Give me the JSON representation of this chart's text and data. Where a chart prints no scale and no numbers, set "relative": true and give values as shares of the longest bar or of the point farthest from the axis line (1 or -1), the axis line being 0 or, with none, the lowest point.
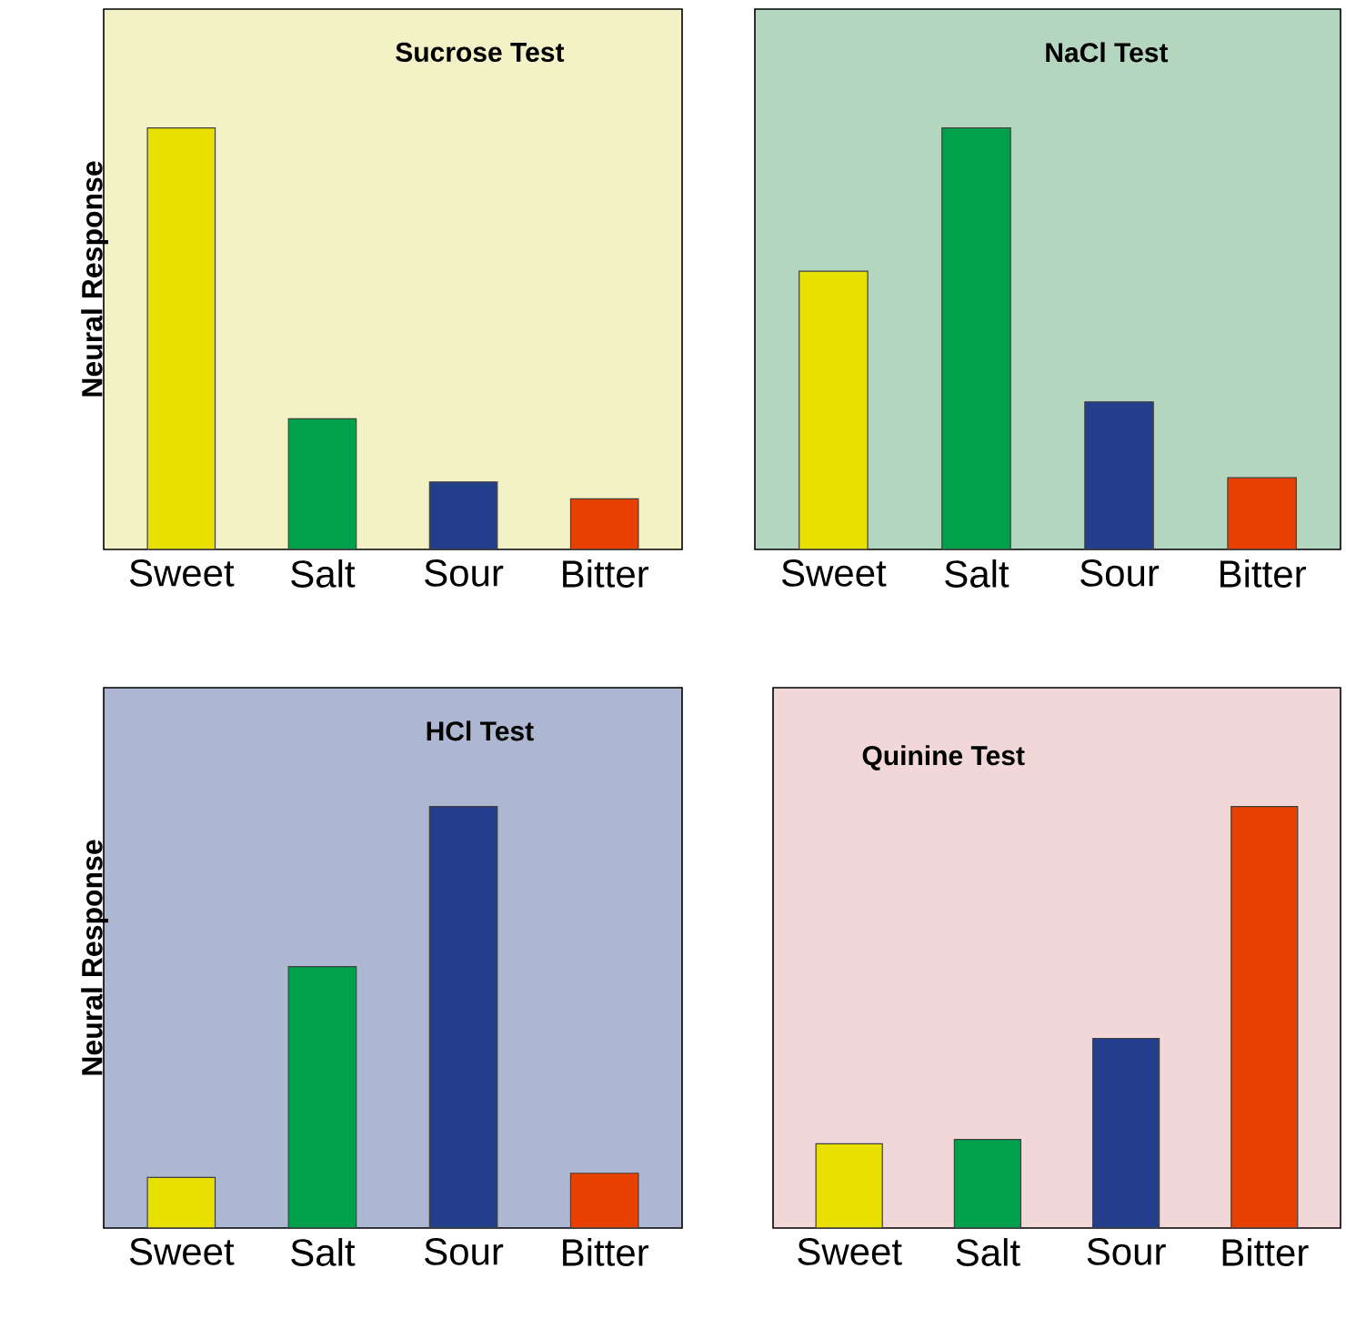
{
  "chart_data": [
    {
      "type": "bar",
      "title": "Sucrose Test",
      "ylabel": "Neural Response",
      "categories": [
        "Sweet",
        "Salt",
        "Sour",
        "Bitter"
      ],
      "values": [
        1,
        0.31,
        0.16,
        0.12
      ],
      "colors": [
        "#e8e000",
        "#00a04c",
        "#233f8c",
        "#e84000"
      ],
      "relative": true
    },
    {
      "type": "bar",
      "title": "NaCl Test",
      "categories": [
        "Sweet",
        "Salt",
        "Sour",
        "Bitter"
      ],
      "values": [
        0.66,
        1,
        0.35,
        0.17
      ],
      "colors": [
        "#e8e000",
        "#00a04c",
        "#233f8c",
        "#e84000"
      ],
      "relative": true
    },
    {
      "type": "bar",
      "title": "HCl Test",
      "ylabel": "Neural Response",
      "categories": [
        "Sweet",
        "Salt",
        "Sour",
        "Bitter"
      ],
      "values": [
        0.12,
        0.62,
        1,
        0.13
      ],
      "colors": [
        "#e8e000",
        "#00a04c",
        "#233f8c",
        "#e84000"
      ],
      "relative": true
    },
    {
      "type": "bar",
      "title": "Quinine Test",
      "categories": [
        "Sweet",
        "Salt",
        "Sour",
        "Bitter"
      ],
      "values": [
        0.2,
        0.21,
        0.45,
        1
      ],
      "colors": [
        "#e8e000",
        "#00a04c",
        "#233f8c",
        "#e84000"
      ],
      "relative": true
    }
  ]
}
